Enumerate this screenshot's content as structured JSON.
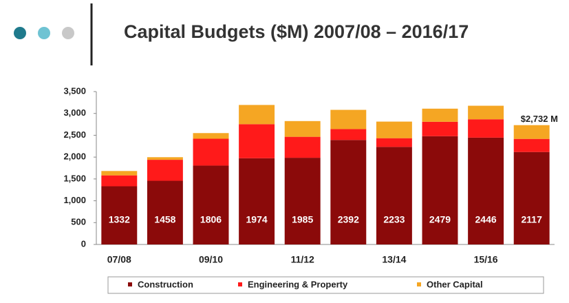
{
  "chart_data": {
    "type": "stacked_bar",
    "title": "Capital Budgets ($M) 2007/08 – 2016/17",
    "categories": [
      "07/08",
      null,
      "09/10",
      null,
      "11/12",
      null,
      "13/14",
      null,
      "15/16",
      null
    ],
    "series": [
      {
        "name": "Construction",
        "color": "#8b0a0a",
        "values": [
          1332,
          1458,
          1806,
          1974,
          1985,
          2392,
          2233,
          2479,
          2446,
          2117
        ]
      },
      {
        "name": "Engineering & Property",
        "color": "#ff1a1a",
        "values": [
          250,
          480,
          614,
          780,
          480,
          250,
          200,
          330,
          420,
          300
        ]
      },
      {
        "name": "Other Capital",
        "color": "#f5a623",
        "values": [
          100,
          60,
          130,
          440,
          360,
          440,
          380,
          300,
          310,
          315
        ]
      }
    ],
    "ylim": [
      0,
      3500
    ],
    "yticks": [
      0,
      500,
      {
        "value": 1000,
        "label": "1,000"
      },
      {
        "value": 1500,
        "label": "1,500"
      },
      {
        "value": 2000,
        "label": "2,000"
      },
      {
        "value": 2500,
        "label": "2,500"
      },
      {
        "value": 3000,
        "label": "3,000"
      },
      {
        "value": 3500,
        "label": "3,500"
      }
    ],
    "annotation": "$2,732 M",
    "legend": "bottom"
  }
}
